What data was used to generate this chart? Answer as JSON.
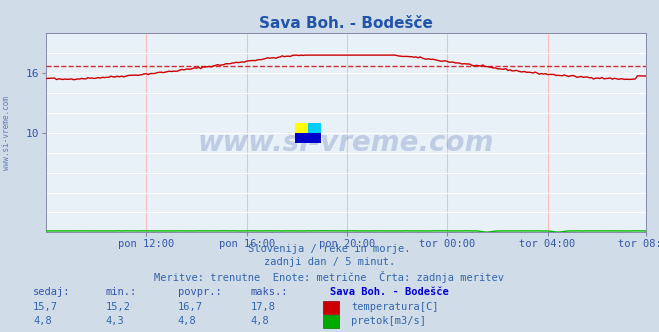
{
  "title": "Sava Boh. - Bodešče",
  "bg_color": "#d0dce8",
  "plot_bg_color": "#e8f0f8",
  "temp_color": "#cc0000",
  "temp_avg_color": "#cc0000",
  "flow_color": "#00bb00",
  "text_color": "#3355aa",
  "title_color": "#2255aa",
  "ylim": [
    0,
    20
  ],
  "yticks": [
    10,
    16
  ],
  "temp_min": 15.2,
  "temp_max": 17.8,
  "temp_avg": 16.7,
  "temp_current": 15.7,
  "flow_min": 4.3,
  "flow_max": 4.8,
  "flow_avg": 4.8,
  "flow_current": 4.8,
  "n_points": 288,
  "xtick_labels": [
    "pon 12:00",
    "pon 16:00",
    "pon 20:00",
    "tor 00:00",
    "tor 04:00",
    "tor 08:00"
  ],
  "xtick_positions": [
    48,
    96,
    144,
    192,
    240,
    287
  ],
  "subtitle_lines": [
    "Slovenija / reke in morje.",
    "zadnji dan / 5 minut.",
    "Meritve: trenutne  Enote: metrične  Črta: zadnja meritev"
  ],
  "table_headers": [
    "sedaj:",
    "min.:",
    "povpr.:",
    "maks.:",
    "Sava Boh. - Bodešče"
  ],
  "table_row1": [
    "15,7",
    "15,2",
    "16,7",
    "17,8"
  ],
  "table_row2": [
    "4,8",
    "4,3",
    "4,8",
    "4,8"
  ],
  "legend_temp": "temperatura[C]",
  "legend_flow": "pretok[m3/s]",
  "watermark": "www.si-vreme.com"
}
